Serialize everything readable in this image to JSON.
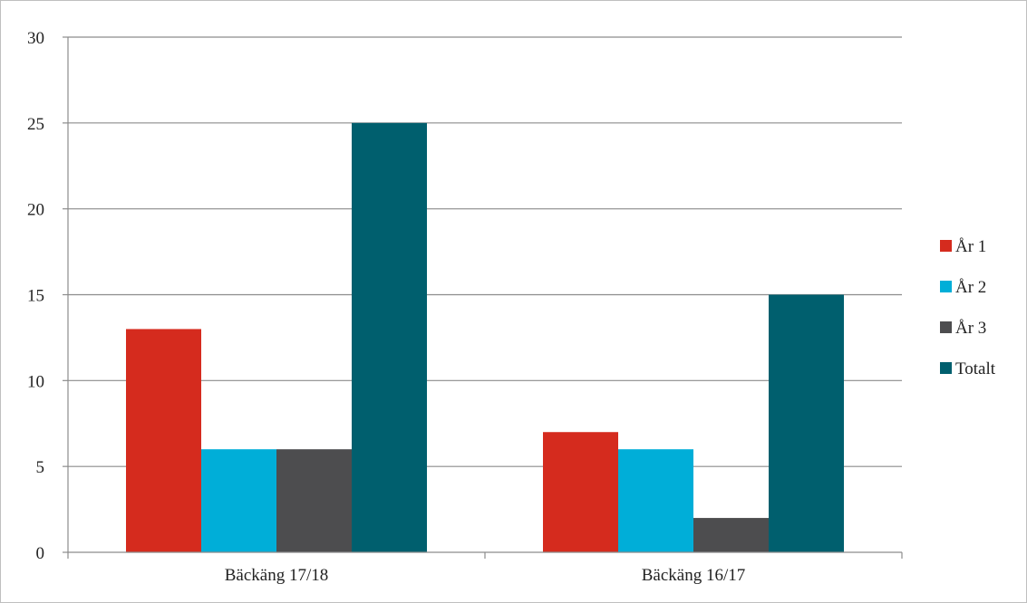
{
  "chart_data": {
    "type": "bar",
    "title": "",
    "xlabel": "",
    "ylabel": "",
    "categories": [
      "Bäckäng 17/18",
      "Bäckäng 16/17"
    ],
    "series": [
      {
        "name": "År 1",
        "values": [
          13,
          7
        ],
        "color": "#d52b1e"
      },
      {
        "name": "År 2",
        "values": [
          6,
          6
        ],
        "color": "#00aed8"
      },
      {
        "name": "År 3",
        "values": [
          6,
          2
        ],
        "color": "#4d4d4f"
      },
      {
        "name": "Totalt",
        "values": [
          25,
          15
        ],
        "color": "#005f6e"
      }
    ],
    "ylim": [
      0,
      30
    ],
    "yticks": [
      "0",
      "5",
      "10",
      "15",
      "20",
      "25",
      "30"
    ],
    "grid": true,
    "legend_position": "right"
  }
}
